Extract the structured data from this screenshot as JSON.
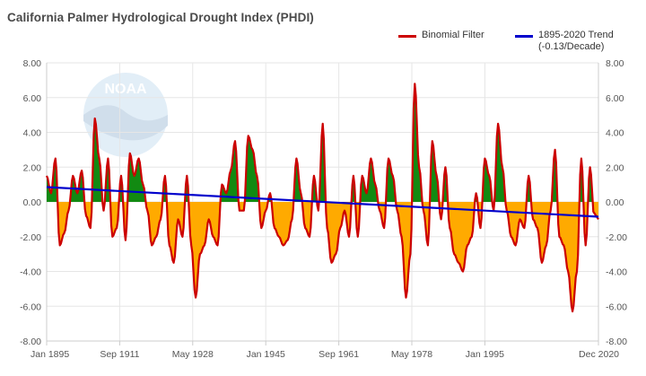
{
  "chart_data": {
    "type": "area",
    "title": "California Palmer Hydrological Drought Index (PHDI)",
    "ylim": [
      -8,
      8
    ],
    "y_ticks": [
      "8.00",
      "6.00",
      "4.00",
      "2.00",
      "0.00",
      "-2.00",
      "-4.00",
      "-6.00",
      "-8.00"
    ],
    "y_tick_values": [
      8,
      6,
      4,
      2,
      0,
      -2,
      -4,
      -6,
      -8
    ],
    "x_range": [
      1895.0,
      2020.92
    ],
    "x_ticks": [
      {
        "label": "Jan 1895",
        "year": 1895.0
      },
      {
        "label": "Sep 1911",
        "year": 1911.67
      },
      {
        "label": "May 1928",
        "year": 1928.33
      },
      {
        "label": "Jan 1945",
        "year": 1945.0
      },
      {
        "label": "Sep 1961",
        "year": 1961.67
      },
      {
        "label": "May 1978",
        "year": 1978.33
      },
      {
        "label": "Jan 1995",
        "year": 1995.0
      },
      {
        "label": "Dec 2020",
        "year": 2020.92
      }
    ],
    "series": [
      {
        "name": "Binomial Filter",
        "color": "#cc0000",
        "positive_fill": "#128a12",
        "negative_fill": "#ffaa00",
        "x": [
          1895,
          1896,
          1897,
          1898,
          1899,
          1900,
          1901,
          1902,
          1903,
          1904,
          1905,
          1906,
          1907,
          1908,
          1909,
          1910,
          1911,
          1912,
          1913,
          1914,
          1915,
          1916,
          1917,
          1918,
          1919,
          1920,
          1921,
          1922,
          1923,
          1924,
          1925,
          1926,
          1927,
          1928,
          1929,
          1930,
          1931,
          1932,
          1933,
          1934,
          1935,
          1936,
          1937,
          1938,
          1939,
          1940,
          1941,
          1942,
          1943,
          1944,
          1945,
          1946,
          1947,
          1948,
          1949,
          1950,
          1951,
          1952,
          1953,
          1954,
          1955,
          1956,
          1957,
          1958,
          1959,
          1960,
          1961,
          1962,
          1963,
          1964,
          1965,
          1966,
          1967,
          1968,
          1969,
          1970,
          1971,
          1972,
          1973,
          1974,
          1975,
          1976,
          1977,
          1978,
          1979,
          1980,
          1981,
          1982,
          1983,
          1984,
          1985,
          1986,
          1987,
          1988,
          1989,
          1990,
          1991,
          1992,
          1993,
          1994,
          1995,
          1996,
          1997,
          1998,
          1999,
          2000,
          2001,
          2002,
          2003,
          2004,
          2005,
          2006,
          2007,
          2008,
          2009,
          2010,
          2011,
          2012,
          2013,
          2014,
          2015,
          2016,
          2017,
          2018,
          2019,
          2020
        ],
        "y": [
          1.5,
          0.5,
          2.5,
          -2.5,
          -1.8,
          -0.5,
          1.5,
          0.5,
          1.8,
          -0.8,
          -1.5,
          4.8,
          2.5,
          -0.5,
          2.5,
          -2.0,
          -1.5,
          1.5,
          -2.2,
          2.8,
          1.5,
          2.5,
          1.0,
          -0.5,
          -2.5,
          -2.0,
          -1.0,
          1.5,
          -2.5,
          -3.5,
          -1.0,
          -2.0,
          1.5,
          -2.5,
          -5.5,
          -3.0,
          -2.5,
          -1.0,
          -2.0,
          -2.5,
          1.0,
          0.5,
          1.8,
          3.5,
          -0.5,
          -0.5,
          3.8,
          3.0,
          1.5,
          -1.5,
          -0.5,
          0.5,
          -1.5,
          -2.0,
          -2.5,
          -2.2,
          -1.0,
          2.5,
          0.5,
          -1.5,
          -2.0,
          1.5,
          -0.5,
          4.5,
          -1.5,
          -3.5,
          -3.0,
          -1.5,
          -0.5,
          -2.0,
          1.5,
          -2.0,
          1.5,
          0.5,
          2.5,
          1.0,
          -0.5,
          -1.5,
          2.5,
          1.5,
          -0.5,
          -2.0,
          -5.5,
          -3.0,
          6.8,
          2.0,
          -0.5,
          -2.5,
          3.5,
          1.5,
          -1.0,
          2.0,
          -1.5,
          -3.0,
          -3.5,
          -4.0,
          -2.5,
          -2.0,
          0.5,
          -1.5,
          2.5,
          1.5,
          -0.5,
          4.5,
          2.0,
          -0.5,
          -2.0,
          -2.5,
          -1.0,
          -1.5,
          1.5,
          -1.0,
          -1.5,
          -3.5,
          -2.5,
          -0.5,
          3.0,
          -2.0,
          -2.5,
          -4.0,
          -6.3,
          -4.0,
          2.5,
          -2.5,
          2.0,
          -1.0
        ]
      },
      {
        "name": "1895-2020 Trend\n(-0.13/Decade)",
        "color": "#0000cc",
        "x": [
          1895,
          2020.92
        ],
        "y": [
          0.85,
          -0.85
        ]
      }
    ],
    "watermark": "NOAA"
  }
}
